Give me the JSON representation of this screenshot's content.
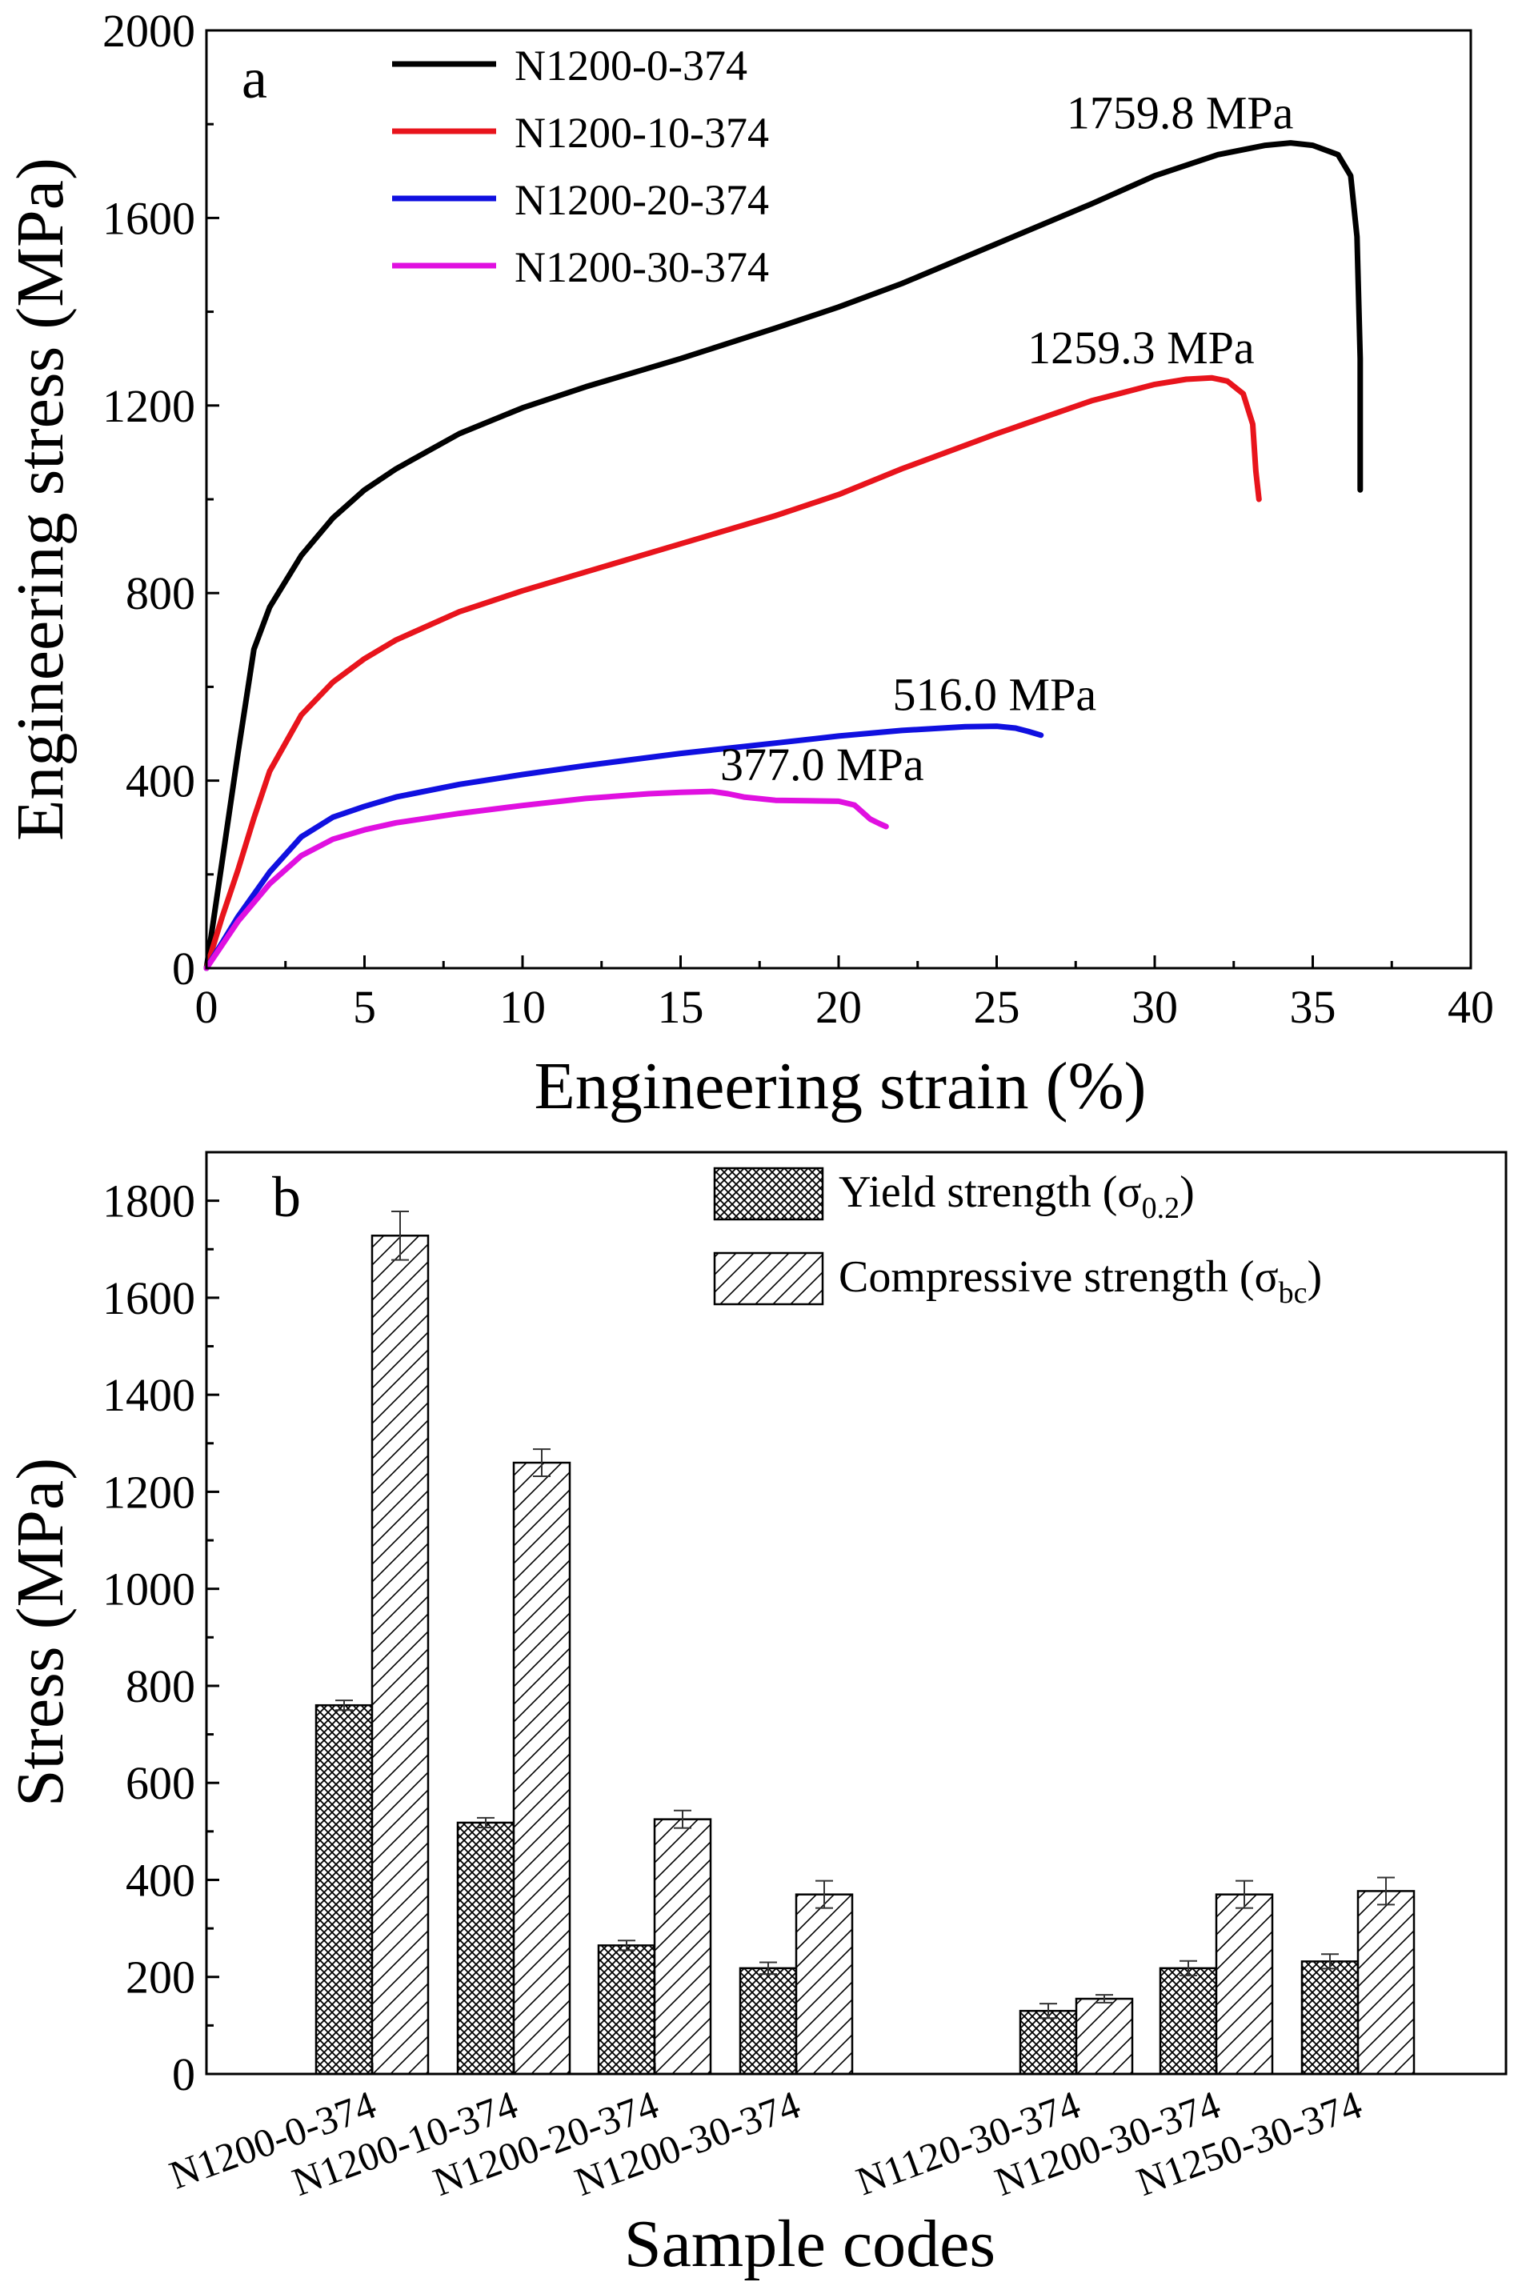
{
  "chart_data": [
    {
      "panel": "a",
      "type": "line",
      "xlabel": "Engineering strain (%)",
      "ylabel": "Engineering stress (MPa)",
      "xlim": [
        0,
        40
      ],
      "ylim": [
        0,
        2000
      ],
      "xticks": [
        0,
        5,
        10,
        15,
        20,
        25,
        30,
        35,
        40
      ],
      "yticks": [
        0,
        400,
        800,
        1200,
        1600,
        2000
      ],
      "legend_position": "top-left",
      "series": [
        {
          "name": "N1200-0-374",
          "color": "#000000",
          "points": [
            [
              0,
              0
            ],
            [
              0.5,
              230
            ],
            [
              1,
              460
            ],
            [
              1.5,
              680
            ],
            [
              2,
              770
            ],
            [
              3,
              880
            ],
            [
              4,
              960
            ],
            [
              5,
              1020
            ],
            [
              6,
              1065
            ],
            [
              8,
              1140
            ],
            [
              10,
              1195
            ],
            [
              12,
              1240
            ],
            [
              15,
              1300
            ],
            [
              18,
              1365
            ],
            [
              20,
              1410
            ],
            [
              22,
              1460
            ],
            [
              25,
              1545
            ],
            [
              28,
              1630
            ],
            [
              30,
              1690
            ],
            [
              32,
              1735
            ],
            [
              33.5,
              1755
            ],
            [
              34.3,
              1760
            ],
            [
              35,
              1755
            ],
            [
              35.8,
              1735
            ],
            [
              36.2,
              1690
            ],
            [
              36.4,
              1560
            ],
            [
              36.5,
              1300
            ],
            [
              36.5,
              1020
            ]
          ],
          "peak_label": "1759.8 MPa"
        },
        {
          "name": "N1200-10-374",
          "color": "#e8141c",
          "points": [
            [
              0,
              0
            ],
            [
              0.5,
              110
            ],
            [
              1,
              210
            ],
            [
              1.5,
              320
            ],
            [
              2,
              420
            ],
            [
              3,
              540
            ],
            [
              4,
              610
            ],
            [
              5,
              660
            ],
            [
              6,
              700
            ],
            [
              8,
              760
            ],
            [
              10,
              805
            ],
            [
              12,
              845
            ],
            [
              15,
              905
            ],
            [
              18,
              965
            ],
            [
              20,
              1010
            ],
            [
              22,
              1065
            ],
            [
              25,
              1140
            ],
            [
              28,
              1210
            ],
            [
              30,
              1245
            ],
            [
              31,
              1256
            ],
            [
              31.8,
              1259
            ],
            [
              32.3,
              1252
            ],
            [
              32.8,
              1225
            ],
            [
              33.1,
              1160
            ],
            [
              33.2,
              1060
            ],
            [
              33.3,
              1000
            ]
          ],
          "peak_label": "1259.3 MPa"
        },
        {
          "name": "N1200-20-374",
          "color": "#1010e0",
          "points": [
            [
              0,
              0
            ],
            [
              0.5,
              55
            ],
            [
              1,
              110
            ],
            [
              2,
              205
            ],
            [
              3,
              280
            ],
            [
              4,
              322
            ],
            [
              5,
              345
            ],
            [
              6,
              365
            ],
            [
              8,
              392
            ],
            [
              10,
              413
            ],
            [
              12,
              432
            ],
            [
              15,
              458
            ],
            [
              18,
              480
            ],
            [
              20,
              495
            ],
            [
              22,
              507
            ],
            [
              24,
              515
            ],
            [
              25,
              516
            ],
            [
              25.6,
              512
            ],
            [
              26,
              505
            ],
            [
              26.4,
              497
            ]
          ],
          "peak_label": "516.0 MPa"
        },
        {
          "name": "N1200-30-374",
          "color": "#e010e0",
          "points": [
            [
              0,
              0
            ],
            [
              0.5,
              50
            ],
            [
              1,
              100
            ],
            [
              2,
              180
            ],
            [
              3,
              240
            ],
            [
              4,
              275
            ],
            [
              5,
              295
            ],
            [
              6,
              310
            ],
            [
              8,
              330
            ],
            [
              10,
              347
            ],
            [
              12,
              362
            ],
            [
              14,
              372
            ],
            [
              15,
              375
            ],
            [
              16,
              377
            ],
            [
              16.5,
              372
            ],
            [
              17,
              365
            ],
            [
              18,
              358
            ],
            [
              19,
              357
            ],
            [
              20,
              356
            ],
            [
              20.5,
              348
            ],
            [
              20.8,
              330
            ],
            [
              21,
              318
            ],
            [
              21.3,
              308
            ],
            [
              21.5,
              302
            ]
          ],
          "peak_label": "377.0 MPa"
        }
      ]
    },
    {
      "panel": "b",
      "type": "bar",
      "xlabel": "Sample codes",
      "ylabel": "Stress (MPa)",
      "ylim": [
        0,
        1900
      ],
      "yticks": [
        0,
        200,
        400,
        600,
        800,
        1000,
        1200,
        1400,
        1600,
        1800
      ],
      "legend_position": "top-right",
      "groups": [
        {
          "categories": [
            "N1200-0-374",
            "N1200-10-374",
            "N1200-20-374",
            "N1200-30-374"
          ]
        },
        {
          "categories": [
            "N1120-30-374",
            "N1200-30-374",
            "N1250-30-374"
          ]
        }
      ],
      "categories": [
        "N1200-0-374",
        "N1200-10-374",
        "N1200-20-374",
        "N1200-30-374",
        "N1120-30-374",
        "N1200-30-374",
        "N1250-30-374"
      ],
      "series": [
        {
          "name": "Yield strength (σ0.2)",
          "label_main": "Yield strength (σ",
          "label_sub": "0.2",
          "label_tail": ")",
          "pattern": "crosshatch",
          "values": [
            760,
            518,
            265,
            218,
            130,
            218,
            232
          ],
          "errors": [
            10,
            10,
            10,
            12,
            15,
            15,
            15
          ]
        },
        {
          "name": "Compressive strength (σbc)",
          "label_main": "Compressive strength (σ",
          "label_sub": "bc",
          "label_tail": ")",
          "pattern": "diagonal",
          "values": [
            1728,
            1260,
            525,
            370,
            155,
            370,
            377
          ],
          "errors": [
            50,
            28,
            18,
            28,
            8,
            28,
            28
          ]
        }
      ]
    }
  ]
}
